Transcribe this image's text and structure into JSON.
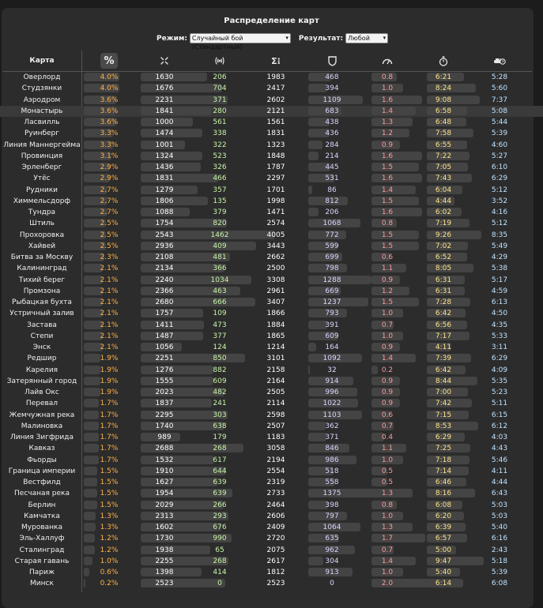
{
  "title": "Распределение карт",
  "filters": {
    "mode_label": "Режим:",
    "mode_value": "Случайный бой (Стандартный)",
    "result_label": "Результат:",
    "result_value": "Любой"
  },
  "header": {
    "map": "Карта",
    "percent": "%",
    "icons": [
      "crosshair-icon",
      "radio-signal-icon",
      "sigma-icon",
      "shield-icon",
      "speedometer-icon",
      "stopwatch-icon",
      "tank-clock-icon"
    ]
  },
  "highlighted_row": 3,
  "rows": [
    [
      "Оверлорд",
      "4.0%",
      "1630",
      "206",
      "1983",
      "468",
      "0.8",
      "6:21",
      "5:28"
    ],
    [
      "Студзянки",
      "4.0%",
      "1676",
      "704",
      "2417",
      "394",
      "1.0",
      "8:24",
      "5:60"
    ],
    [
      "Аэродром",
      "3.6%",
      "2231",
      "371",
      "2602",
      "1109",
      "1.6",
      "9:08",
      "7:37"
    ],
    [
      "Монастырь",
      "3.6%",
      "1841",
      "280",
      "2121",
      "683",
      "1.4",
      "6:58",
      "5:08"
    ],
    [
      "Ласвилль",
      "3.6%",
      "1000",
      "561",
      "1561",
      "438",
      "1.3",
      "6:48",
      "5:44"
    ],
    [
      "Руинберг",
      "3.3%",
      "1474",
      "338",
      "1831",
      "436",
      "1.2",
      "7:58",
      "5:39"
    ],
    [
      "Линия Маннергейма",
      "3.3%",
      "1001",
      "322",
      "1323",
      "284",
      "0.9",
      "6:55",
      "4:60"
    ],
    [
      "Провинция",
      "3.1%",
      "1324",
      "523",
      "1848",
      "214",
      "1.6",
      "7:22",
      "5:27"
    ],
    [
      "Эрленберг",
      "2.9%",
      "1436",
      "326",
      "1787",
      "445",
      "1.5",
      "7:05",
      "6:10"
    ],
    [
      "Утёс",
      "2.9%",
      "1831",
      "466",
      "2297",
      "531",
      "1.6",
      "7:43",
      "6:29"
    ],
    [
      "Рудники",
      "2.7%",
      "1279",
      "357",
      "1701",
      "86",
      "1.4",
      "6:04",
      "5:12"
    ],
    [
      "Химмельсдорф",
      "2.7%",
      "1806",
      "135",
      "1998",
      "812",
      "1.5",
      "4:44",
      "3:52"
    ],
    [
      "Тундра",
      "2.7%",
      "1088",
      "379",
      "1471",
      "206",
      "1.6",
      "6:02",
      "4:16"
    ],
    [
      "Штиль",
      "2.5%",
      "1754",
      "820",
      "2574",
      "1068",
      "0.8",
      "7:19",
      "5:12"
    ],
    [
      "Прохоровка",
      "2.5%",
      "2543",
      "1462",
      "4005",
      "772",
      "1.5",
      "9:26",
      "8:35"
    ],
    [
      "Хайвей",
      "2.5%",
      "2936",
      "409",
      "3443",
      "599",
      "1.5",
      "7:02",
      "5:49"
    ],
    [
      "Битва за Москву",
      "2.3%",
      "2108",
      "481",
      "2662",
      "699",
      "0.6",
      "6:52",
      "4:29"
    ],
    [
      "Калининград",
      "2.1%",
      "2134",
      "366",
      "2500",
      "798",
      "1.1",
      "8:05",
      "5:38"
    ],
    [
      "Тихий берег",
      "2.1%",
      "2240",
      "1034",
      "3308",
      "1288",
      "0.9",
      "6:31",
      "5:17"
    ],
    [
      "Промзона",
      "2.1%",
      "2366",
      "463",
      "2961",
      "669",
      "1.2",
      "6:31",
      "4:59"
    ],
    [
      "Рыбацкая бухта",
      "2.1%",
      "2680",
      "666",
      "3407",
      "1237",
      "1.5",
      "7:28",
      "6:13"
    ],
    [
      "Устричный залив",
      "2.1%",
      "1757",
      "109",
      "1866",
      "793",
      "1.0",
      "6:42",
      "4:50"
    ],
    [
      "Застава",
      "2.1%",
      "1411",
      "473",
      "1884",
      "391",
      "0.7",
      "6:56",
      "4:35"
    ],
    [
      "Степи",
      "2.1%",
      "1487",
      "377",
      "1865",
      "609",
      "1.0",
      "7:17",
      "5:33"
    ],
    [
      "Энск",
      "2.1%",
      "1056",
      "124",
      "1214",
      "164",
      "0.9",
      "4:11",
      "3:11"
    ],
    [
      "Редшир",
      "1.9%",
      "2251",
      "850",
      "3101",
      "1092",
      "1.4",
      "7:39",
      "6:29"
    ],
    [
      "Карелия",
      "1.9%",
      "1276",
      "882",
      "2158",
      "32",
      "0.2",
      "6:42",
      "4:09"
    ],
    [
      "Затерянный город",
      "1.9%",
      "1555",
      "609",
      "2164",
      "914",
      "0.9",
      "8:44",
      "5:35"
    ],
    [
      "Лайв Окс",
      "1.9%",
      "2023",
      "482",
      "2505",
      "996",
      "0.9",
      "7:00",
      "5:23"
    ],
    [
      "Перевал",
      "1.7%",
      "1837",
      "241",
      "2114",
      "1022",
      "0.9",
      "7:42",
      "5:11"
    ],
    [
      "Жемчужная река",
      "1.7%",
      "2295",
      "303",
      "2598",
      "1103",
      "0.6",
      "7:15",
      "6:15"
    ],
    [
      "Малиновка",
      "1.7%",
      "1740",
      "638",
      "2507",
      "362",
      "0.7",
      "8:53",
      "6:12"
    ],
    [
      "Линия Зигфрида",
      "1.7%",
      "989",
      "179",
      "1183",
      "371",
      "0.4",
      "6:29",
      "4:03"
    ],
    [
      "Кавказ",
      "1.7%",
      "2688",
      "268",
      "3058",
      "846",
      "1.1",
      "7:25",
      "4:43"
    ],
    [
      "Фьорды",
      "1.7%",
      "1532",
      "617",
      "2194",
      "986",
      "1.0",
      "7:18",
      "5:46"
    ],
    [
      "Граница империи",
      "1.5%",
      "1910",
      "644",
      "2554",
      "518",
      "0.5",
      "7:14",
      "4:11"
    ],
    [
      "Вестфилд",
      "1.5%",
      "1627",
      "639",
      "2319",
      "558",
      "0.5",
      "6:46",
      "4:44"
    ],
    [
      "Песчаная река",
      "1.5%",
      "1954",
      "639",
      "2733",
      "1375",
      "1.3",
      "8:16",
      "6:43"
    ],
    [
      "Берлин",
      "1.5%",
      "2029",
      "266",
      "2464",
      "398",
      "0.8",
      "6:08",
      "5:03"
    ],
    [
      "Камчатка",
      "1.3%",
      "2313",
      "293",
      "2606",
      "797",
      "1.0",
      "6:20",
      "5:03"
    ],
    [
      "Мурованка",
      "1.3%",
      "1602",
      "676",
      "2409",
      "1064",
      "1.3",
      "6:39",
      "5:40"
    ],
    [
      "Эль-Халлуф",
      "1.2%",
      "1730",
      "990",
      "2720",
      "635",
      "1.7",
      "6:57",
      "6:16"
    ],
    [
      "Сталинград",
      "1.2%",
      "1938",
      "65",
      "2075",
      "962",
      "0.7",
      "5:00",
      "2:43"
    ],
    [
      "Старая гавань",
      "1.0%",
      "2255",
      "268",
      "2617",
      "304",
      "1.4",
      "9:47",
      "5:18"
    ],
    [
      "Париж",
      "0.6%",
      "1398",
      "414",
      "1812",
      "913",
      "1.0",
      "5:40",
      "5:39"
    ],
    [
      "Минск",
      "0.2%",
      "2523",
      "0",
      "2523",
      "0",
      "2.0",
      "6:14",
      "6:08"
    ]
  ]
}
